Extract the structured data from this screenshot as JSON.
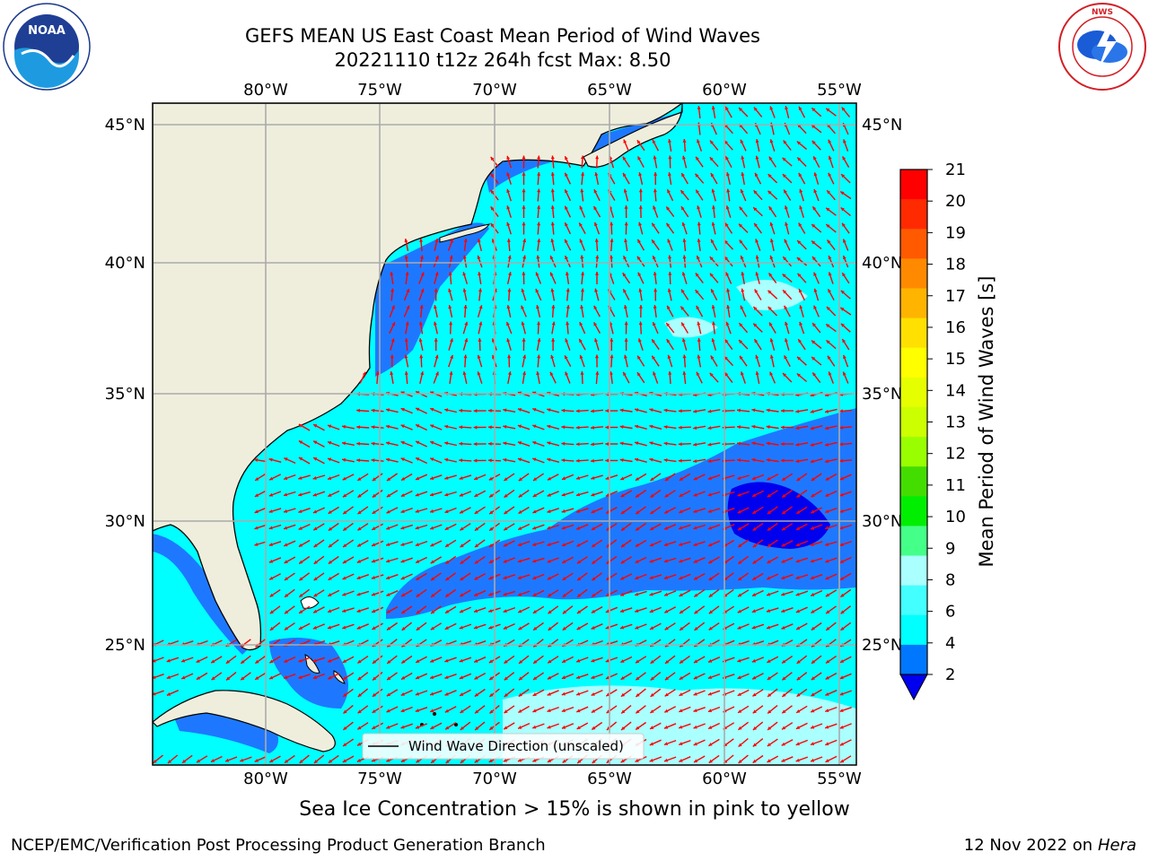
{
  "header": {
    "title_line1": "GEFS MEAN US East Coast Mean Period of Wind Waves",
    "title_line2": "20221110 t12z 264h fcst   Max: 8.50"
  },
  "logos": {
    "noaa": {
      "icon": "noaa-logo",
      "text": "NOAA",
      "ring_text": "NATIONAL OCEANIC AND ATMOSPHERIC ADMINISTRATION · U.S. DEPARTMENT OF COMMERCE"
    },
    "nws": {
      "icon": "national-weather-service-logo",
      "ring_text": "NATIONAL WEATHER SERVICE"
    }
  },
  "map": {
    "lon_labels": [
      "80°W",
      "75°W",
      "70°W",
      "65°W",
      "60°W",
      "55°W"
    ],
    "lat_labels": [
      "45°N",
      "40°N",
      "35°N",
      "30°N",
      "25°N"
    ],
    "legend_label": "Wind Wave Direction (unscaled)",
    "colors": {
      "land": "#efeedd",
      "ocean_light": "#00ffff",
      "arrow": "#ff0000"
    }
  },
  "colorbar": {
    "label": "Mean Period of Wind Waves [s]",
    "ticks": [
      "21",
      "20",
      "19",
      "18",
      "17",
      "16",
      "15",
      "14",
      "13",
      "12",
      "11",
      "10",
      "9",
      "8",
      "6",
      "4",
      "2"
    ],
    "colors": [
      "#ff0000",
      "#ff2a00",
      "#ff5a00",
      "#ff8a00",
      "#ffb400",
      "#ffe000",
      "#ffff00",
      "#e6ff00",
      "#ccff00",
      "#99ff00",
      "#44dd00",
      "#00ee00",
      "#44ff88",
      "#aaffff",
      "#44ffff",
      "#00ffff",
      "#0077ff"
    ],
    "under_color": "#0000ee"
  },
  "footer": {
    "note": "Sea Ice Concentration > 15% is shown in pink to yellow",
    "credit": "NCEP/EMC/Verification Post Processing Product Generation Branch",
    "date": "12 Nov 2022 on",
    "machine": "Hera"
  }
}
